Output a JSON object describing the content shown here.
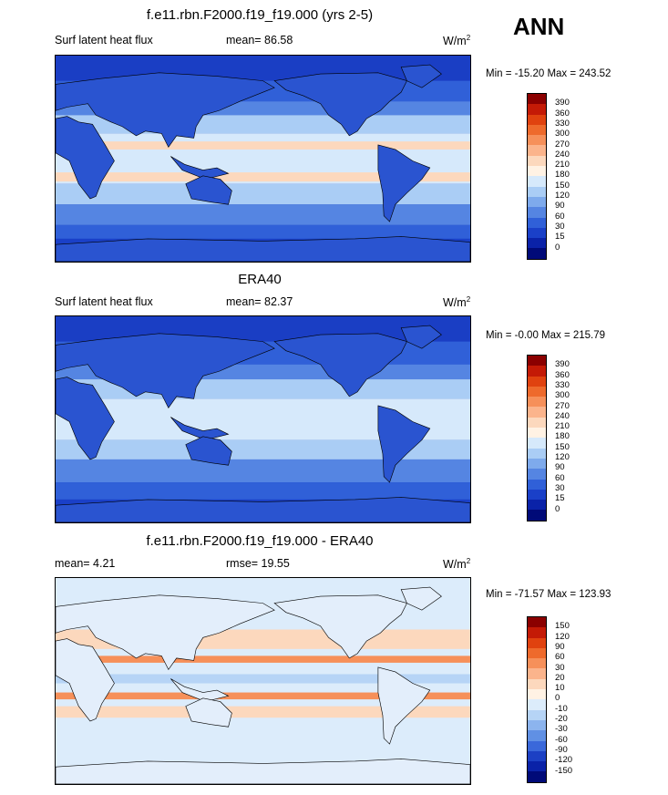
{
  "season": "ANN",
  "panels": [
    {
      "title": "f.e11.rbn.F2000.f19_f19.000 (yrs 2-5)",
      "left_label": "Surf latent heat flux",
      "center_label": "mean=  86.58",
      "units": "W/m",
      "units_exp": "2",
      "minmax": "Min = -15.20 Max = 243.52",
      "colorbar_labels": [
        "390",
        "360",
        "330",
        "300",
        "270",
        "240",
        "210",
        "180",
        "150",
        "120",
        "90",
        "60",
        "30",
        "15",
        "0"
      ],
      "colorbar_colors": [
        "#8b0000",
        "#c41a06",
        "#e0420f",
        "#ee6a2c",
        "#f6905a",
        "#fbb48c",
        "#fcd8bd",
        "#fff2e4",
        "#d6e9fb",
        "#aacdf5",
        "#7eaaec",
        "#5585e2",
        "#3060d8",
        "#1a40c8",
        "#0a22a8",
        "#000a78"
      ],
      "map_style": "model"
    },
    {
      "title": "ERA40",
      "left_label": "Surf latent heat flux",
      "center_label": "mean=  82.37",
      "units": "W/m",
      "units_exp": "2",
      "minmax": "Min =  -0.00 Max = 215.79",
      "colorbar_labels": [
        "390",
        "360",
        "330",
        "300",
        "270",
        "240",
        "210",
        "180",
        "150",
        "120",
        "90",
        "60",
        "30",
        "15",
        "0"
      ],
      "colorbar_colors": [
        "#8b0000",
        "#c41a06",
        "#e0420f",
        "#ee6a2c",
        "#f6905a",
        "#fbb48c",
        "#fcd8bd",
        "#fff2e4",
        "#d6e9fb",
        "#aacdf5",
        "#7eaaec",
        "#5585e2",
        "#3060d8",
        "#1a40c8",
        "#0a22a8",
        "#000a78"
      ],
      "map_style": "obs"
    },
    {
      "title": "f.e11.rbn.F2000.f19_f19.000 - ERA40",
      "left_label": "mean=   4.21",
      "center_label": "rmse=  19.55",
      "units": "W/m",
      "units_exp": "2",
      "minmax": "Min = -71.57 Max = 123.93",
      "colorbar_labels": [
        "150",
        "120",
        "90",
        "60",
        "30",
        "20",
        "10",
        "0",
        "-10",
        "-20",
        "-30",
        "-60",
        "-90",
        "-120",
        "-150"
      ],
      "colorbar_colors": [
        "#8b0000",
        "#c41a06",
        "#e0420f",
        "#ee6a2c",
        "#f6905a",
        "#fbb48c",
        "#fcd8bd",
        "#fff2e4",
        "#dcecfb",
        "#b6d4f6",
        "#8cb4ee",
        "#6090e4",
        "#3a68da",
        "#1c40c4",
        "#0a22a8",
        "#000a78"
      ],
      "map_style": "diff"
    }
  ]
}
